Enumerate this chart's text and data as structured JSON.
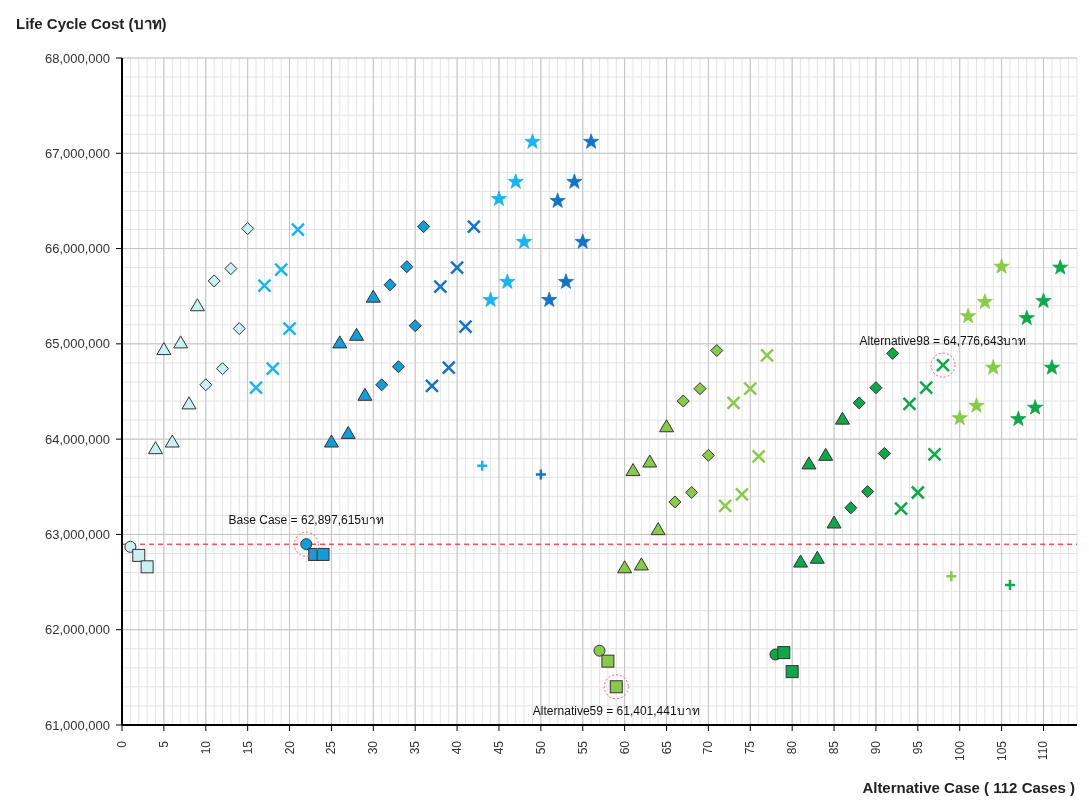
{
  "chart_data": {
    "type": "scatter",
    "ylabel": "Life Cycle Cost (บาท)",
    "xlabel": "Alternative Case ( 112 Cases )",
    "xlim": [
      0,
      114
    ],
    "xticks": [
      0,
      5,
      10,
      15,
      20,
      25,
      30,
      35,
      40,
      45,
      50,
      55,
      60,
      65,
      70,
      75,
      80,
      85,
      90,
      95,
      100,
      105,
      110
    ],
    "ylim": [
      61000000,
      68000000
    ],
    "yticks": [
      {
        "value": 61000000,
        "label": "61,000,000"
      },
      {
        "value": 62000000,
        "label": "62,000,000"
      },
      {
        "value": 63000000,
        "label": "63,000,000"
      },
      {
        "value": 64000000,
        "label": "64,000,000"
      },
      {
        "value": 65000000,
        "label": "65,000,000"
      },
      {
        "value": 66000000,
        "label": "66,000,000"
      },
      {
        "value": 67000000,
        "label": "67,000,000"
      },
      {
        "value": 68000000,
        "label": "68,000,000"
      }
    ],
    "grid": true,
    "legend": false,
    "series": [
      {
        "marker": "circle",
        "color": "#c9f1f3",
        "x": [
          1
        ],
        "values": [
          62870000
        ]
      },
      {
        "marker": "square",
        "color": "#c9f1f3",
        "x": [
          2,
          3
        ],
        "values": [
          62780000,
          62660000
        ]
      },
      {
        "marker": "triangle",
        "color": "#c9f1f3",
        "x": [
          4,
          5,
          6,
          7,
          8,
          9
        ],
        "values": [
          63900000,
          64940000,
          63970000,
          65010000,
          64370000,
          65400000
        ]
      },
      {
        "marker": "diamond",
        "color": "#c9f1f3",
        "x": [
          10,
          11,
          12,
          13,
          14,
          15
        ],
        "values": [
          64570000,
          65660000,
          64740000,
          65790000,
          65160000,
          66210000
        ]
      },
      {
        "marker": "cross",
        "color": "#1ab4eb",
        "x": [
          16,
          17,
          18,
          19,
          20,
          21
        ],
        "values": [
          64540000,
          65610000,
          64740000,
          65780000,
          65160000,
          66200000
        ]
      },
      {
        "marker": "circle",
        "color": "#159bd7",
        "x": [
          22
        ],
        "values": [
          62897615
        ]
      },
      {
        "marker": "square",
        "color": "#159bd7",
        "x": [
          23,
          24
        ],
        "values": [
          62790000,
          62790000
        ]
      },
      {
        "marker": "triangle",
        "color": "#159bd7",
        "x": [
          25,
          26,
          27,
          28,
          29,
          30
        ],
        "values": [
          63970000,
          65010000,
          64060000,
          65090000,
          64460000,
          65490000
        ]
      },
      {
        "marker": "diamond",
        "color": "#159bd7",
        "x": [
          31,
          32,
          33,
          34,
          35,
          36
        ],
        "values": [
          64570000,
          65620000,
          64760000,
          65810000,
          65190000,
          66230000
        ]
      },
      {
        "marker": "cross",
        "color": "#1673c4",
        "x": [
          37,
          38,
          39,
          40,
          41,
          42
        ],
        "values": [
          64560000,
          65600000,
          64750000,
          65800000,
          65180000,
          66230000
        ]
      },
      {
        "marker": "plus",
        "color": "#1ab4eb",
        "x": [
          43
        ],
        "values": [
          63720000
        ]
      },
      {
        "marker": "star",
        "color": "#1ab4eb",
        "x": [
          44,
          45,
          46,
          47,
          48,
          49
        ],
        "values": [
          65460000,
          66520000,
          65650000,
          66700000,
          66070000,
          67120000
        ]
      },
      {
        "marker": "plus",
        "color": "#1673c4",
        "x": [
          50
        ],
        "values": [
          63630000
        ]
      },
      {
        "marker": "star",
        "color": "#1673c4",
        "x": [
          51,
          52,
          53,
          54,
          55,
          56
        ],
        "values": [
          65460000,
          66500000,
          65650000,
          66700000,
          66070000,
          67120000
        ]
      },
      {
        "marker": "circle",
        "color": "#8bc94a",
        "x": [
          57
        ],
        "values": [
          61780000
        ]
      },
      {
        "marker": "square",
        "color": "#8bc94a",
        "x": [
          58,
          59
        ],
        "values": [
          61670000,
          61401441
        ]
      },
      {
        "marker": "triangle",
        "color": "#8bc94a",
        "x": [
          60,
          61,
          62,
          63,
          64,
          65
        ],
        "values": [
          62650000,
          63670000,
          62680000,
          63760000,
          63050000,
          64130000
        ]
      },
      {
        "marker": "diamond",
        "color": "#8bc94a",
        "x": [
          66,
          67,
          68,
          69,
          70,
          71
        ],
        "values": [
          63340000,
          64400000,
          63440000,
          64530000,
          63830000,
          64930000
        ]
      },
      {
        "marker": "cross",
        "color": "#8bc94a",
        "x": [
          72,
          73,
          74,
          75,
          76,
          77
        ],
        "values": [
          63300000,
          64380000,
          63420000,
          64530000,
          63820000,
          64880000
        ]
      },
      {
        "marker": "circle",
        "color": "#10a64a",
        "x": [
          78
        ],
        "values": [
          61740000
        ]
      },
      {
        "marker": "square",
        "color": "#10a64a",
        "x": [
          79,
          80
        ],
        "values": [
          61760000,
          61560000
        ]
      },
      {
        "marker": "triangle",
        "color": "#10a64a",
        "x": [
          81,
          82,
          83,
          84,
          85,
          86
        ],
        "values": [
          62710000,
          63740000,
          62750000,
          63830000,
          63120000,
          64210000
        ]
      },
      {
        "marker": "diamond",
        "color": "#10a64a",
        "x": [
          87,
          88,
          89,
          90,
          91,
          92
        ],
        "values": [
          63280000,
          64380000,
          63450000,
          64540000,
          63850000,
          64900000
        ]
      },
      {
        "marker": "cross",
        "color": "#10a64a",
        "x": [
          93,
          94,
          95,
          96,
          97,
          98
        ],
        "values": [
          63270000,
          64370000,
          63440000,
          64540000,
          63840000,
          64776643
        ]
      },
      {
        "marker": "plus",
        "color": "#8bc94a",
        "x": [
          99
        ],
        "values": [
          62560000
        ]
      },
      {
        "marker": "star",
        "color": "#8bc94a",
        "x": [
          100,
          101,
          102,
          103,
          104,
          105
        ],
        "values": [
          64220000,
          65290000,
          64350000,
          65440000,
          64750000,
          65810000
        ]
      },
      {
        "marker": "plus",
        "color": "#10a64a",
        "x": [
          106
        ],
        "values": [
          62470000
        ]
      },
      {
        "marker": "star",
        "color": "#10a64a",
        "x": [
          107,
          108,
          109,
          110,
          111,
          112
        ],
        "values": [
          64210000,
          65270000,
          64330000,
          65450000,
          64750000,
          65800000
        ]
      }
    ],
    "ref_lines": [
      {
        "axis": "y",
        "value": 62897615,
        "color": "#ff0000",
        "line_style": "dashed"
      }
    ],
    "annotations": [
      {
        "text": "Base Case = 62,897,615บาท",
        "x": 22,
        "y": 62897615
      },
      {
        "text": "Alternative59 = 61,401,441บาท",
        "x": 59,
        "y": 61401441
      },
      {
        "text": "Alternative98 = 64,776,643บาท",
        "x": 98,
        "y": 64776643
      }
    ]
  }
}
